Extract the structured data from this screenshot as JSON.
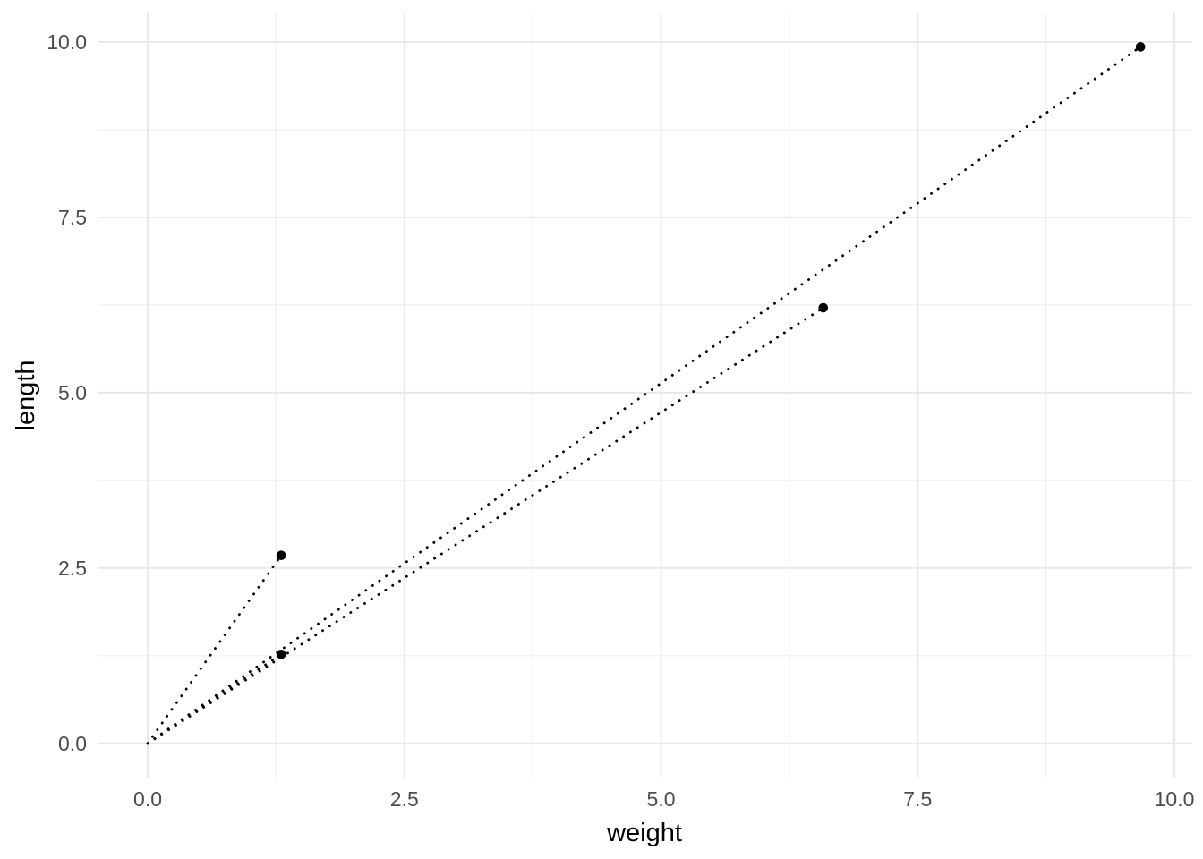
{
  "chart_data": {
    "type": "scatter",
    "title": "",
    "xlabel": "weight",
    "ylabel": "length",
    "legend": false,
    "grid": true,
    "xlim": [
      -0.48,
      10.17
    ],
    "ylim": [
      -0.5,
      10.42
    ],
    "x_ticks": [
      0,
      2.5,
      5,
      7.5,
      10
    ],
    "y_ticks": [
      0,
      2.5,
      5,
      7.5,
      10
    ],
    "x_tick_labels": [
      "0.0",
      "2.5",
      "5.0",
      "7.5",
      "10.0"
    ],
    "y_tick_labels": [
      "0.0",
      "2.5",
      "5.0",
      "7.5",
      "10.0"
    ],
    "x_minor_ticks": [
      1.25,
      3.75,
      6.25,
      8.75
    ],
    "y_minor_ticks": [
      1.25,
      3.75,
      6.25,
      8.75
    ],
    "points": [
      {
        "weight": 1.3,
        "length": 2.68
      },
      {
        "weight": 1.3,
        "length": 1.27
      },
      {
        "weight": 6.58,
        "length": 6.21
      },
      {
        "weight": 9.67,
        "length": 9.93
      }
    ],
    "segments": [
      {
        "x1": 0,
        "y1": 0,
        "x2": 1.3,
        "y2": 2.68,
        "linetype": "dotted"
      },
      {
        "x1": 0,
        "y1": 0,
        "x2": 1.3,
        "y2": 1.27,
        "linetype": "dotted"
      },
      {
        "x1": 0,
        "y1": 0,
        "x2": 6.58,
        "y2": 6.21,
        "linetype": "dotted"
      },
      {
        "x1": 0,
        "y1": 0,
        "x2": 9.67,
        "y2": 9.93,
        "linetype": "dotted"
      }
    ],
    "colors": {
      "background": "#FFFFFF",
      "grid_major": "#E8E8E8",
      "grid_minor": "#EFEFEF",
      "points": "#000000",
      "segments": "#000000",
      "tick_labels": "#4D4D4D",
      "axis_titles": "#000000"
    }
  }
}
